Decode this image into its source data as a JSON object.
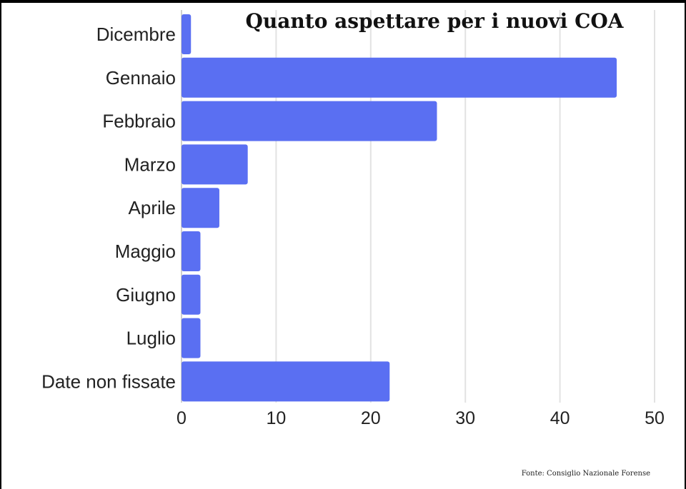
{
  "chart_data": {
    "type": "bar",
    "orientation": "horizontal",
    "title": "Quanto aspettare per i nuovi COA",
    "categories": [
      "Dicembre",
      "Gennaio",
      "Febbraio",
      "Marzo",
      "Aprile",
      "Maggio",
      "Giugno",
      "Luglio",
      "Date non fissate"
    ],
    "values": [
      1,
      46,
      27,
      7,
      4,
      2,
      2,
      2,
      22
    ],
    "x_ticks": [
      "0",
      "10",
      "20",
      "30",
      "40",
      "50"
    ],
    "xlim": [
      0,
      50
    ],
    "grid": true,
    "bar_color": "#5a6ff2",
    "source": "Fonte: Consiglio Nazionale Forense"
  }
}
